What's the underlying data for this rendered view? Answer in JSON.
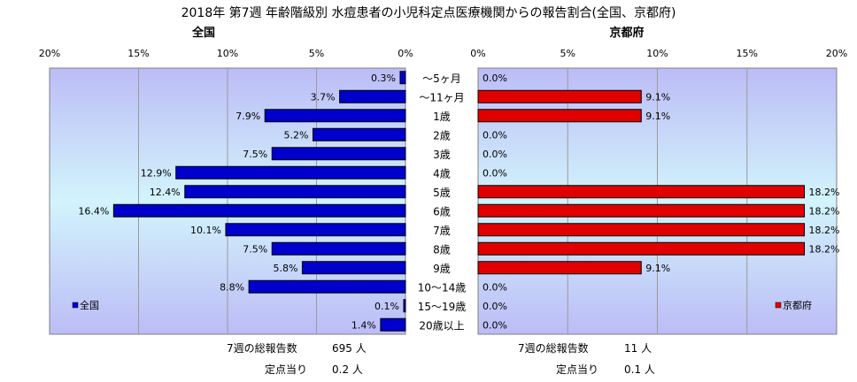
{
  "title": "2018年 第7週 年齢階級別 水痘患者の小児科定点医療機関からの報告割合(全国、京都府)",
  "chart_data": {
    "type": "bar",
    "categories": [
      "～5ヶ月",
      "～11ヶ月",
      "1歳",
      "2歳",
      "3歳",
      "4歳",
      "5歳",
      "6歳",
      "7歳",
      "8歳",
      "9歳",
      "10～14歳",
      "15～19歳",
      "20歳以上"
    ],
    "xlim": [
      0,
      20
    ],
    "xticks": [
      "0%",
      "5%",
      "10%",
      "15%",
      "20%"
    ],
    "left_panel_ticks": [
      "20%",
      "15%",
      "10%",
      "5%",
      "0%"
    ],
    "series": [
      {
        "name": "全国",
        "color": "#0000cc",
        "values": [
          0.3,
          3.7,
          7.9,
          5.2,
          7.5,
          12.9,
          12.4,
          16.4,
          10.1,
          7.5,
          5.8,
          8.8,
          0.1,
          1.4
        ],
        "labels": [
          "0.3%",
          "3.7%",
          "7.9%",
          "5.2%",
          "7.5%",
          "12.9%",
          "12.4%",
          "16.4%",
          "10.1%",
          "7.5%",
          "5.8%",
          "8.8%",
          "0.1%",
          "1.4%"
        ]
      },
      {
        "name": "京都府",
        "color": "#e00000",
        "values": [
          0.0,
          9.1,
          9.1,
          0.0,
          0.0,
          0.0,
          18.2,
          18.2,
          18.2,
          18.2,
          9.1,
          0.0,
          0.0,
          0.0
        ],
        "labels": [
          "0.0%",
          "9.1%",
          "9.1%",
          "0.0%",
          "0.0%",
          "0.0%",
          "18.2%",
          "18.2%",
          "18.2%",
          "18.2%",
          "9.1%",
          "0.0%",
          "0.0%",
          "0.0%"
        ]
      }
    ],
    "panel_titles": [
      "全国",
      "京都府"
    ],
    "legend_placement": "inside-bottom",
    "grid": true
  },
  "footer": {
    "left_total_label": "7週の総報告数",
    "left_total_value": "695 人",
    "left_per_label": "定点当り",
    "left_per_value": "0.2 人",
    "right_total_label": "7週の総報告数",
    "right_total_value": "11 人",
    "right_per_label": "定点当り",
    "right_per_value": "0.1 人"
  }
}
